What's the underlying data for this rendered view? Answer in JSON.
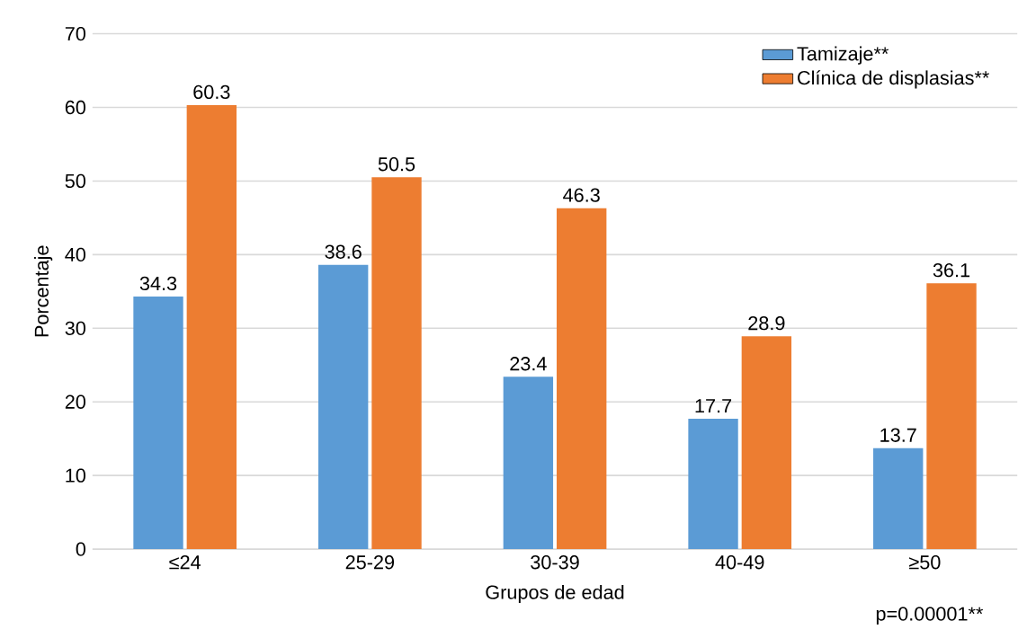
{
  "chart_data": {
    "type": "bar",
    "xlabel": "Grupos de edad",
    "ylabel": "Porcentaje",
    "categories": [
      "≤24",
      "25-29",
      "30-39",
      "40-49",
      "≥50"
    ],
    "series": [
      {
        "name": "Tamizaje**",
        "color": "#5b9bd5",
        "values": [
          34.3,
          38.6,
          23.4,
          17.7,
          13.7
        ]
      },
      {
        "name": "Clínica de displasias**",
        "color": "#ed7d31",
        "values": [
          60.3,
          50.5,
          46.3,
          28.9,
          36.1
        ]
      }
    ],
    "ylim": [
      0,
      70
    ],
    "yticks": [
      0,
      10,
      20,
      30,
      40,
      50,
      60,
      70
    ],
    "grid": "y",
    "legend": "top right",
    "data_labels": true,
    "annotations": [
      "p=0.00001**"
    ]
  }
}
